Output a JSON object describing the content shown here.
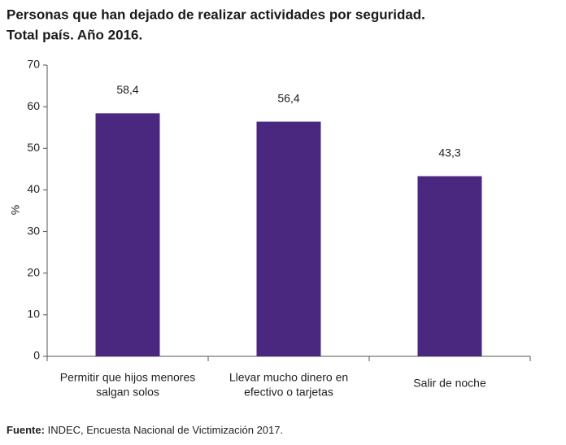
{
  "chart_data": {
    "type": "bar",
    "title": "Personas que han dejado de realizar actividades por seguridad.",
    "subtitle": "Total país. Año 2016.",
    "y_label": "%",
    "categories": [
      [
        "Permitir que hijos menores",
        "salgan solos"
      ],
      [
        "Llevar mucho dinero en",
        "efectivo o tarjetas"
      ],
      [
        "Salir de noche"
      ]
    ],
    "values": [
      58.4,
      56.4,
      43.3
    ],
    "value_labels": [
      "58,4",
      "56,4",
      "43,3"
    ],
    "color": "#4b2880",
    "ylim": [
      0,
      70
    ],
    "yticks": [
      0,
      10,
      20,
      30,
      40,
      50,
      60,
      70
    ],
    "source": {
      "label": "Fuente:",
      "text": "INDEC, Encuesta Nacional de Victimización 2017."
    }
  }
}
